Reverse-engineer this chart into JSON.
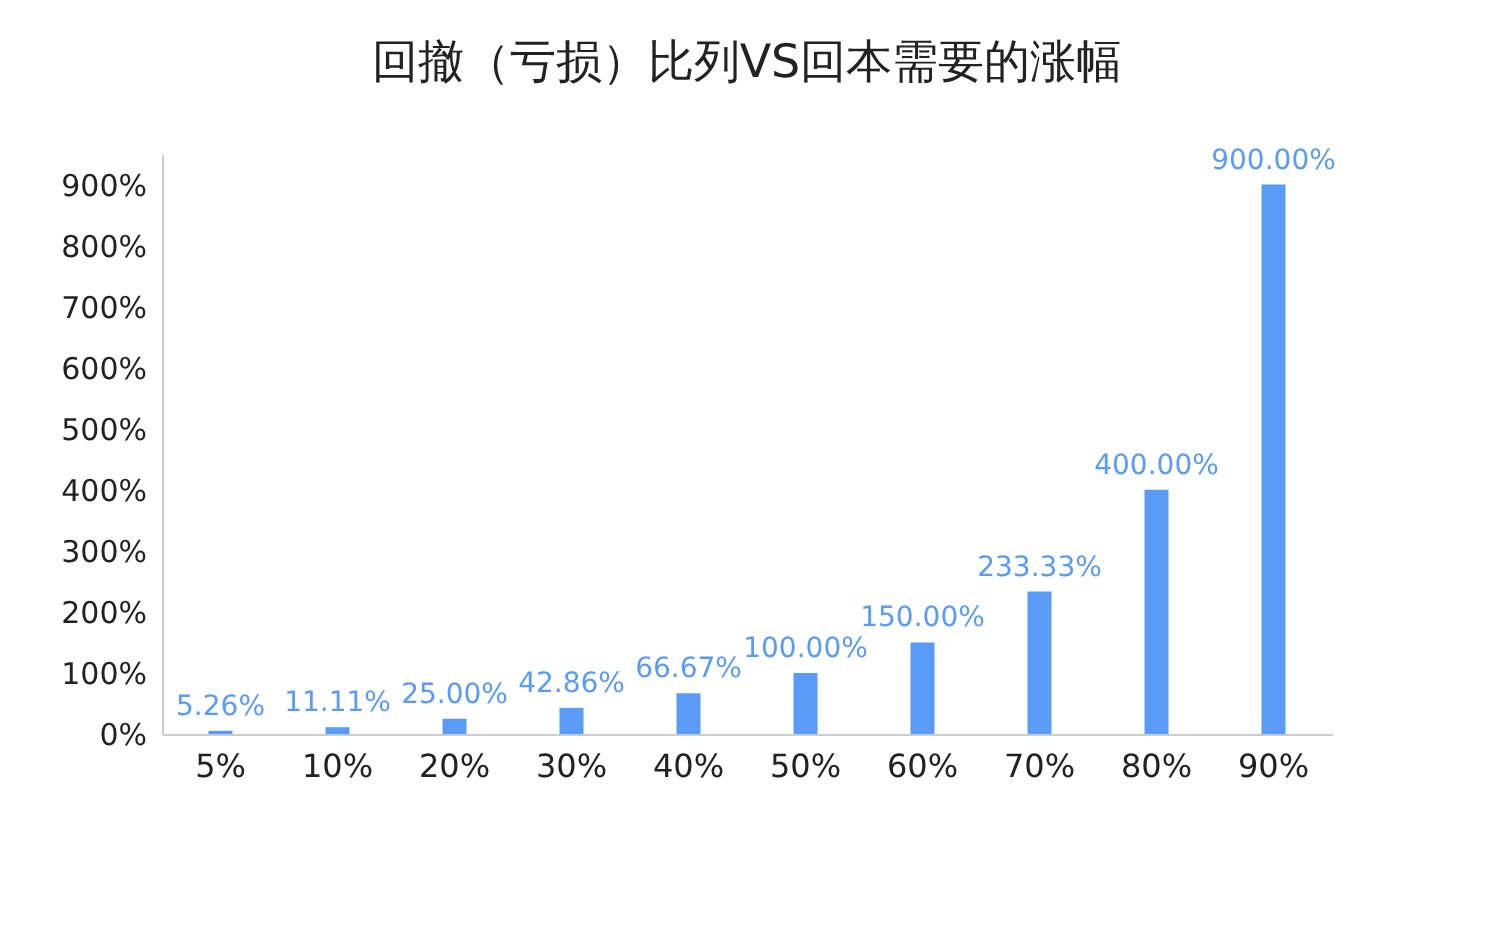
{
  "chart_data": {
    "type": "bar",
    "title": "回撤（亏损）比列VS回本需要的涨幅",
    "categories": [
      "5%",
      "10%",
      "20%",
      "30%",
      "40%",
      "50%",
      "60%",
      "70%",
      "80%",
      "90%"
    ],
    "series": [
      {
        "color": "#5b9bf8",
        "values": [
          5.26,
          11.11,
          25,
          42.86,
          66.67,
          100,
          150,
          233.33,
          400,
          900
        ],
        "value_labels": [
          "5.26%",
          "11.11%",
          "25.00%",
          "42.86%",
          "66.67%",
          "100.00%",
          "150.00%",
          "233.33%",
          "400.00%",
          "900.00%"
        ]
      }
    ],
    "ylim": [
      0,
      950
    ],
    "yticks": [
      {
        "value": 0,
        "label": "0%"
      },
      {
        "value": 100,
        "label": "100%"
      },
      {
        "value": 200,
        "label": "200%"
      },
      {
        "value": 300,
        "label": "300%"
      },
      {
        "value": 400,
        "label": "400%"
      },
      {
        "value": 500,
        "label": "500%"
      },
      {
        "value": 600,
        "label": "600%"
      },
      {
        "value": 700,
        "label": "700%"
      },
      {
        "value": 800,
        "label": "800%"
      },
      {
        "value": 900,
        "label": "900%"
      }
    ],
    "grid": false
  }
}
